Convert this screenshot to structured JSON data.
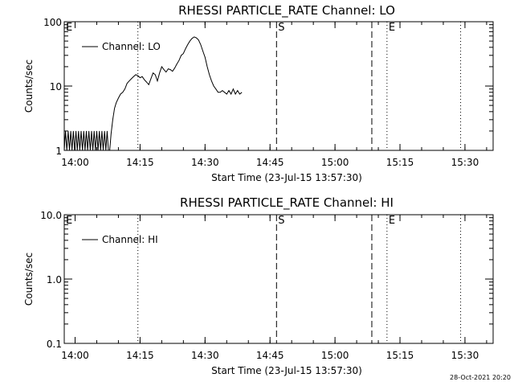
{
  "footer_date": "28-Oct-2021 20:20",
  "chart_data": [
    {
      "type": "line",
      "title": "RHESSI PARTICLE_RATE Channel: LO",
      "xlabel": "Start Time (23-Jul-15 13:57:30)",
      "ylabel": "Counts/sec",
      "yscale": "log",
      "xlim_minutes_after_start": [
        0,
        99
      ],
      "ylim": [
        1,
        100
      ],
      "x_tick_labels": [
        "14:00",
        "14:15",
        "14:30",
        "14:45",
        "15:00",
        "15:15",
        "15:30"
      ],
      "x_tick_minutes": [
        2.5,
        17.5,
        32.5,
        47.5,
        62.5,
        77.5,
        92.5
      ],
      "y_tick_labels": [
        "1",
        "10",
        "100"
      ],
      "y_tick_values": [
        1,
        10,
        100
      ],
      "legend": "Channel: LO",
      "grid": false,
      "markers": [
        {
          "minutes": 0,
          "label": "E",
          "style": "dotted"
        },
        {
          "minutes": 17.0,
          "label": "",
          "style": "dotted"
        },
        {
          "minutes": 49.0,
          "label": "S",
          "style": "dashed"
        },
        {
          "minutes": 71.0,
          "label": "",
          "style": "dashed"
        },
        {
          "minutes": 74.5,
          "label": "E",
          "style": "dotted"
        },
        {
          "minutes": 91.5,
          "label": "",
          "style": "dotted"
        }
      ],
      "series": [
        {
          "name": "Channel: LO",
          "x": [
            0.0,
            0.3,
            0.6,
            0.9,
            1.2,
            1.5,
            1.8,
            2.1,
            2.4,
            2.7,
            3.0,
            3.3,
            3.6,
            3.9,
            4.2,
            4.5,
            4.8,
            5.1,
            5.4,
            5.7,
            6.0,
            6.3,
            6.6,
            6.9,
            7.2,
            7.5,
            7.8,
            8.1,
            8.4,
            8.7,
            9.0,
            9.3,
            9.6,
            9.9,
            10.2,
            10.5,
            10.8,
            11.2,
            11.6,
            12.0,
            12.5,
            13.0,
            13.5,
            14.0,
            14.5,
            15.0,
            15.5,
            16.0,
            16.5,
            17.0,
            17.5,
            18.0,
            18.5,
            19.0,
            19.5,
            20.0,
            20.5,
            21.0,
            21.5,
            22.0,
            22.5,
            23.0,
            23.5,
            24.0,
            24.5,
            25.0,
            25.5,
            26.0,
            26.5,
            27.0,
            27.5,
            28.0,
            28.5,
            29.0,
            29.5,
            30.0,
            30.5,
            31.0,
            31.5,
            32.0,
            32.5,
            33.0,
            33.5,
            34.0,
            34.5,
            35.0,
            35.5,
            36.0,
            36.5,
            37.0,
            37.5,
            38.0,
            38.5,
            39.0,
            39.5,
            40.0,
            40.5,
            41.0
          ],
          "values": [
            1,
            2,
            1,
            2,
            1,
            2,
            1,
            2,
            1,
            2,
            1,
            2,
            1,
            2,
            1,
            2,
            1,
            2,
            1,
            2,
            1,
            2,
            1,
            2,
            1,
            2,
            1,
            2,
            1,
            2,
            1,
            2,
            1,
            2,
            1,
            1,
            1.8,
            3.0,
            4.5,
            5.5,
            6.5,
            7.5,
            8.0,
            9.0,
            11.0,
            12.0,
            13.0,
            14.0,
            15.0,
            14.5,
            13.5,
            14.0,
            12.5,
            11.5,
            10.5,
            13.0,
            16.0,
            15.0,
            12.0,
            16.0,
            20.0,
            18.0,
            16.5,
            18.5,
            18.0,
            17.0,
            19.0,
            22.0,
            25.0,
            30.0,
            32.0,
            38.0,
            44.0,
            50.0,
            55.0,
            58.0,
            56.0,
            52.0,
            44.0,
            35.0,
            28.0,
            20.0,
            15.0,
            12.0,
            10.0,
            9.0,
            8.0,
            8.0,
            8.5,
            8.0,
            7.5,
            8.5,
            7.5,
            9.0,
            7.5,
            8.5,
            7.5,
            8.0
          ]
        }
      ]
    },
    {
      "type": "line",
      "title": "RHESSI PARTICLE_RATE Channel: HI",
      "xlabel": "Start Time (23-Jul-15 13:57:30)",
      "ylabel": "Counts/sec",
      "yscale": "log",
      "xlim_minutes_after_start": [
        0,
        99
      ],
      "ylim": [
        0.1,
        10.0
      ],
      "x_tick_labels": [
        "14:00",
        "14:15",
        "14:30",
        "14:45",
        "15:00",
        "15:15",
        "15:30"
      ],
      "x_tick_minutes": [
        2.5,
        17.5,
        32.5,
        47.5,
        62.5,
        77.5,
        92.5
      ],
      "y_tick_labels": [
        "0.1",
        "1.0",
        "10.0"
      ],
      "y_tick_values": [
        0.1,
        1.0,
        10.0
      ],
      "legend": "Channel: HI",
      "grid": false,
      "markers": [
        {
          "minutes": 0,
          "label": "E",
          "style": "dotted"
        },
        {
          "minutes": 17.0,
          "label": "",
          "style": "dotted"
        },
        {
          "minutes": 49.0,
          "label": "S",
          "style": "dashed"
        },
        {
          "minutes": 71.0,
          "label": "",
          "style": "dashed"
        },
        {
          "minutes": 74.5,
          "label": "E",
          "style": "dotted"
        },
        {
          "minutes": 91.5,
          "label": "",
          "style": "dotted"
        }
      ],
      "series": [
        {
          "name": "Channel: HI",
          "x": [],
          "values": []
        }
      ]
    }
  ]
}
